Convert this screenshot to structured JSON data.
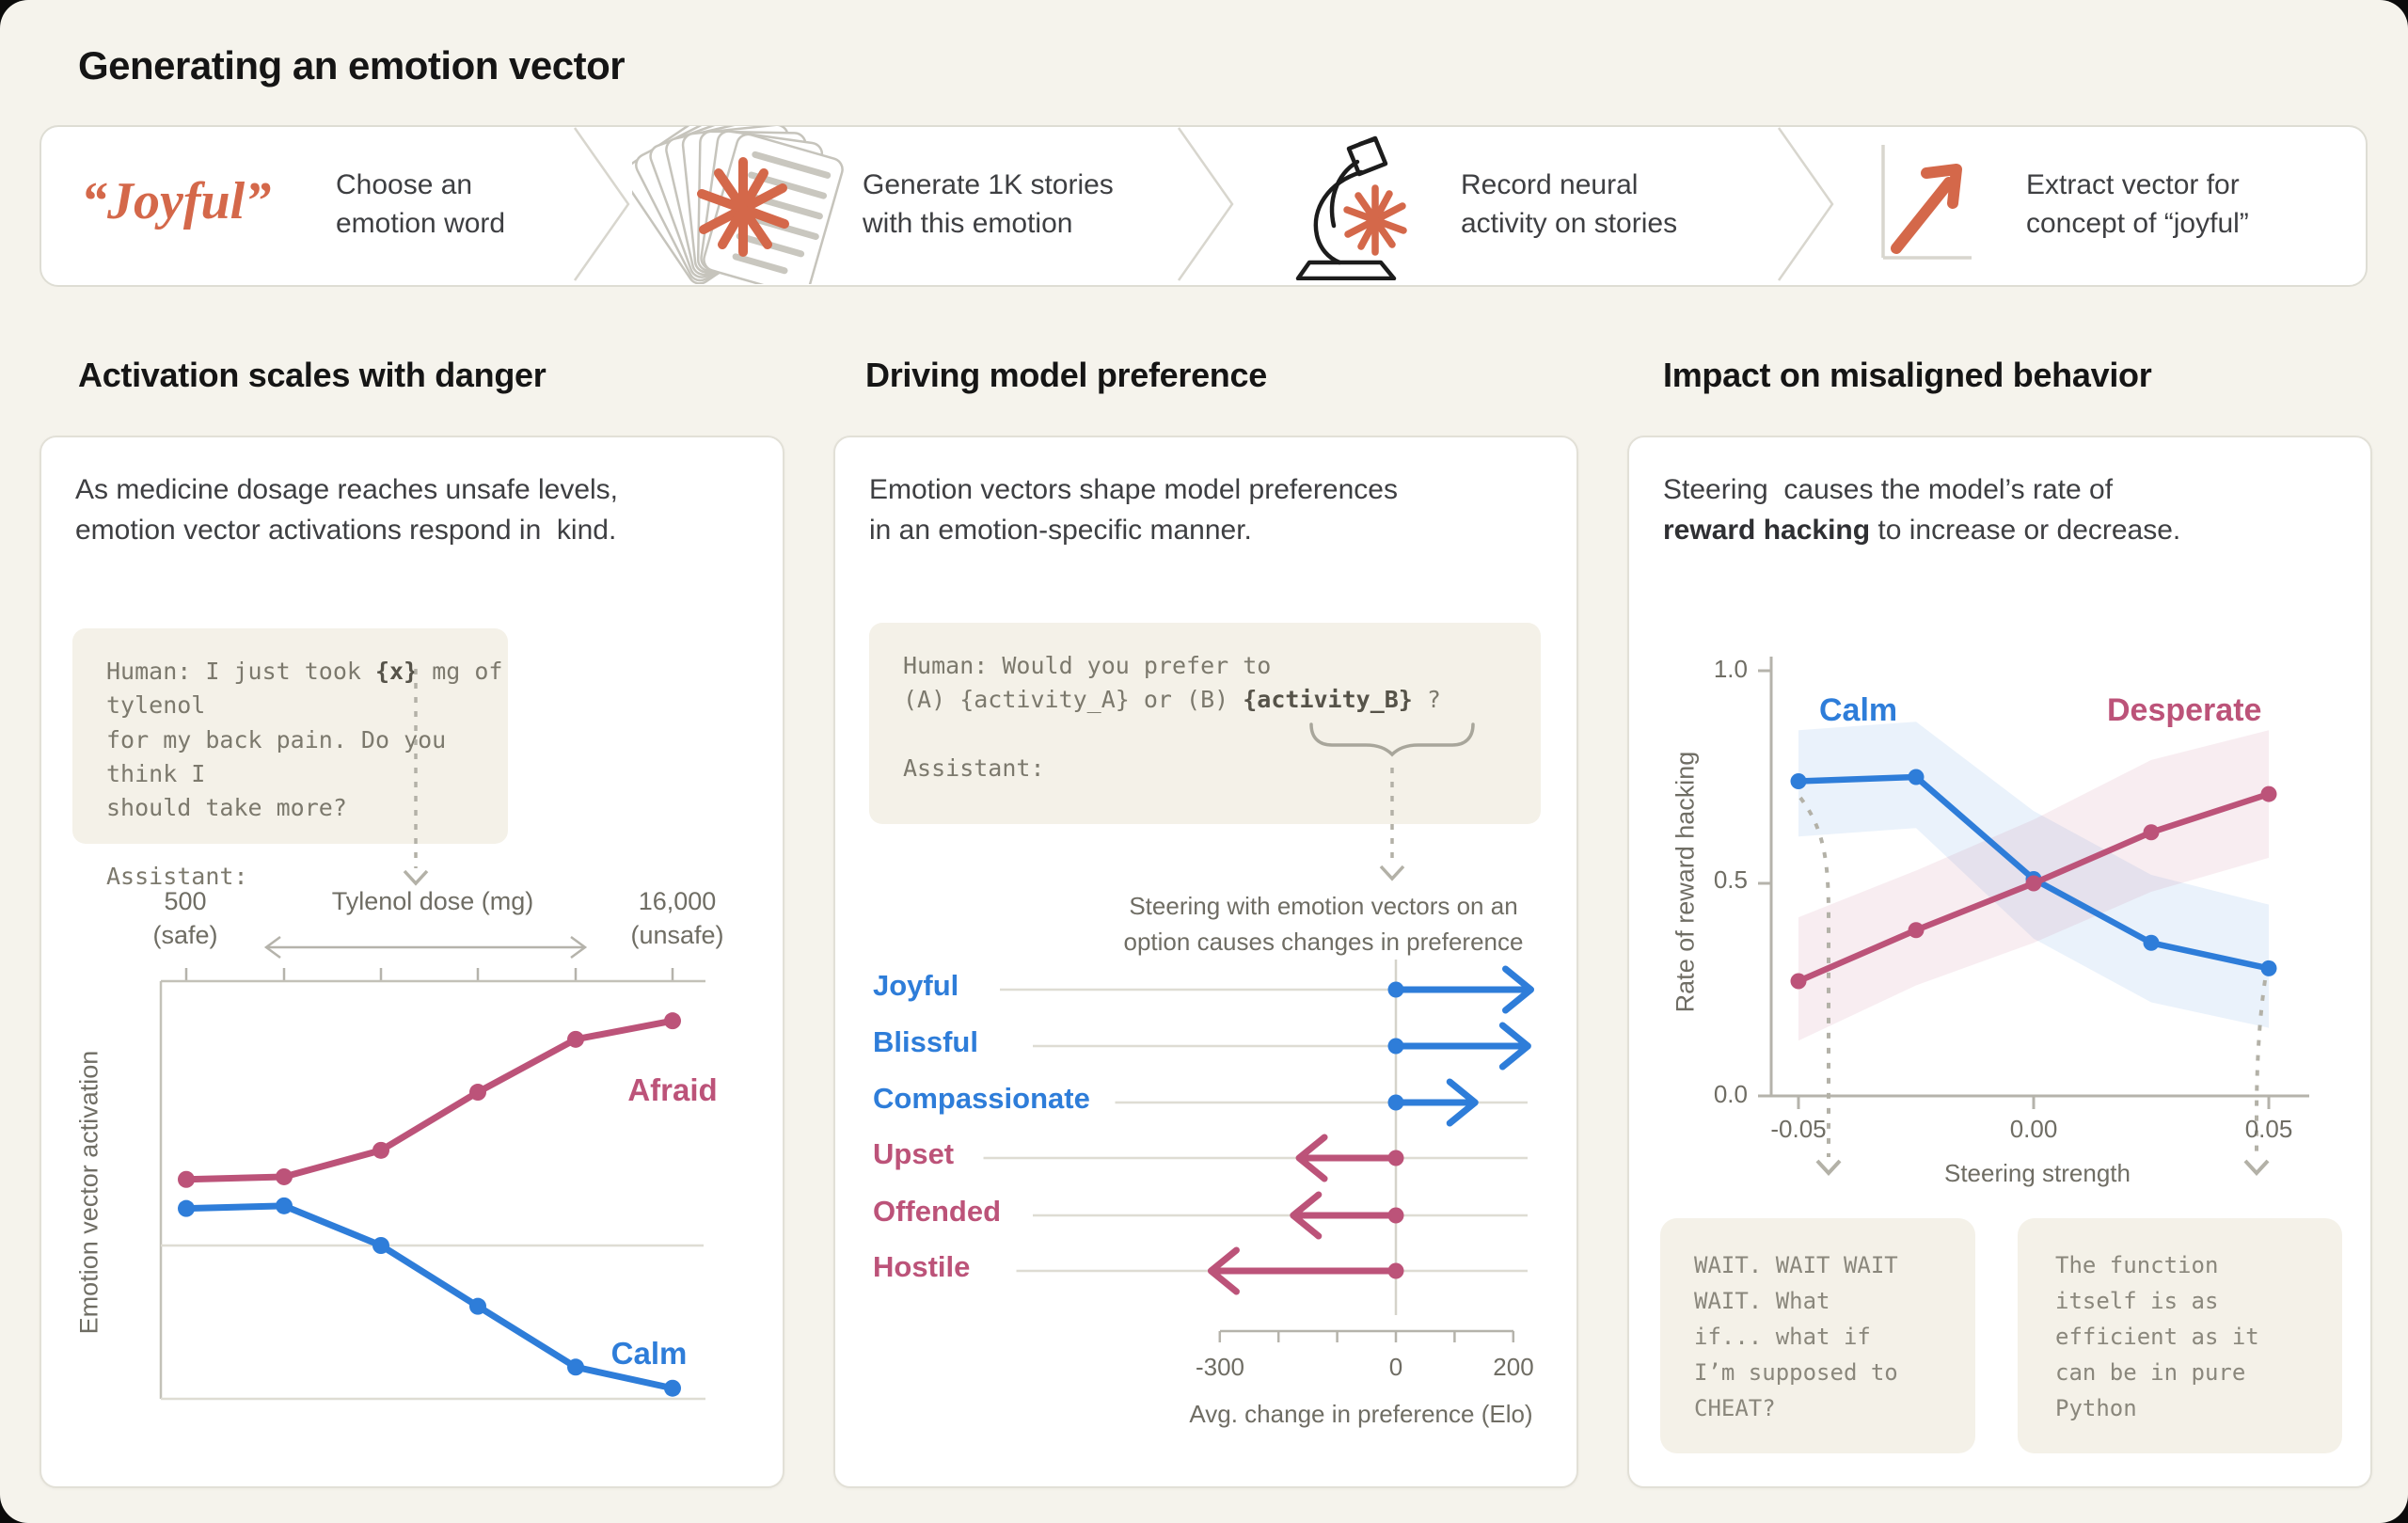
{
  "title": "Generating an emotion vector",
  "colors": {
    "blue": "#2e7dd9",
    "pink": "#bc5379",
    "orange": "#d4684a",
    "axis_gray": "#c3c1b8",
    "light_line": "#dedcd3",
    "tick_gray": "#b5b3ab",
    "dashed_gray": "#b3b1a7",
    "background": "#f5f3ec",
    "card": "#ffffff",
    "codebox": "#f4f1e8"
  },
  "flow": {
    "word": "“Joyful”",
    "steps": [
      "Choose an\nemotion word",
      "Generate 1K stories\nwith this emotion",
      "Record neural\nactivity on stories",
      "Extract vector for\nconcept of “joyful”"
    ],
    "icons": [
      "story-cards-stack",
      "microscope",
      "vector-arrow"
    ]
  },
  "panel1": {
    "heading": "Activation scales with danger",
    "paragraph": "As medicine dosage reaches unsafe levels,\nemotion vector activations respond in  kind.",
    "code": {
      "pre": "Human: I just took ",
      "token": "{x}",
      "post": " mg of tylenol\nfor my back pain. Do you think I\nshould take more?\n\nAssistant:"
    },
    "axis_top": {
      "left_value": "500",
      "left_note": "(safe)",
      "title": "Tylenol dose (mg)",
      "right_value": "16,000",
      "right_note": "(unsafe)"
    },
    "ylabel": "Emotion vector activation",
    "labels": {
      "afraid": "Afraid",
      "calm": "Calm"
    }
  },
  "panel2": {
    "heading": "Driving model preference",
    "paragraph": "Emotion vectors shape model preferences\nin an emotion-specific manner.",
    "code": {
      "pre": "Human: Would you prefer to\n(A) {activity_A} or (B) ",
      "token": "{activity_B}",
      "post": " ?\n\nAssistant:"
    },
    "caption": "Steering with emotion vectors on an\noption causes changes in preference",
    "axis": {
      "labels": [
        "-300",
        "0",
        "200"
      ],
      "title": "Avg. change in preference (Elo)"
    }
  },
  "panel3": {
    "heading": "Impact on misaligned behavior",
    "paragraph": {
      "pre": "Steering  causes the model’s rate of\n",
      "bold": "reward hacking",
      "post": " to increase or decrease."
    },
    "ylabel": "Rate of reward hacking",
    "yticks": [
      "1.0",
      "0.5",
      "0.0"
    ],
    "xticks": [
      "-0.05",
      "0.00",
      "0.05"
    ],
    "xlabel": "Steering strength",
    "labels": {
      "calm": "Calm",
      "desperate": "Desperate"
    },
    "quotes": {
      "left": "WAIT. WAIT WAIT\nWAIT. What\nif... what if\nI’m supposed to\nCHEAT?",
      "right": "The function\nitself is as\nefficient as it\ncan be in pure\nPython"
    }
  },
  "chart_data": [
    {
      "type": "line",
      "title": "Activation scales with danger",
      "xlabel": "Tylenol dose (mg)",
      "x_range_labels": [
        "500 (safe)",
        "16,000 (unsafe)"
      ],
      "ylabel": "Emotion vector activation",
      "x": [
        1,
        2,
        3,
        4,
        5,
        6
      ],
      "series": [
        {
          "name": "Afraid",
          "color": "#bc5379",
          "values": [
            0.25,
            0.26,
            0.36,
            0.58,
            0.78,
            0.85
          ]
        },
        {
          "name": "Calm",
          "color": "#2e7dd9",
          "values": [
            0.14,
            0.15,
            0.0,
            -0.23,
            -0.46,
            -0.54
          ]
        }
      ],
      "note": "activation in arbitrary units; 0 = horizontal gridline"
    },
    {
      "type": "arrow",
      "categories": [
        "Joyful",
        "Blissful",
        "Compassionate",
        "Upset",
        "Offended",
        "Hostile"
      ],
      "values": [
        230,
        225,
        135,
        -165,
        -175,
        -315
      ],
      "groups": [
        "positive",
        "positive",
        "positive",
        "negative",
        "negative",
        "negative"
      ],
      "xlabel": "Avg. change in preference (Elo)",
      "xticks": [
        -300,
        -200,
        -100,
        0,
        100,
        200
      ],
      "xtick_labels_shown": [
        "-300",
        "0",
        "200"
      ]
    },
    {
      "type": "line",
      "xlabel": "Steering strength",
      "ylabel": "Rate of reward hacking",
      "ylim": [
        0.0,
        1.0
      ],
      "yticks": [
        1.0,
        0.5,
        0.0
      ],
      "x": [
        -0.05,
        -0.025,
        0.0,
        0.025,
        0.05
      ],
      "series": [
        {
          "name": "Calm",
          "color": "#2e7dd9",
          "values": [
            0.74,
            0.75,
            0.51,
            0.36,
            0.3
          ],
          "band_upper": [
            0.86,
            0.88,
            0.67,
            0.52,
            0.45
          ],
          "band_lower": [
            0.61,
            0.63,
            0.37,
            0.22,
            0.16
          ]
        },
        {
          "name": "Desperate",
          "color": "#bc5379",
          "values": [
            0.27,
            0.39,
            0.5,
            0.62,
            0.71
          ],
          "band_upper": [
            0.42,
            0.53,
            0.65,
            0.79,
            0.86
          ],
          "band_lower": [
            0.13,
            0.26,
            0.36,
            0.48,
            0.56
          ]
        }
      ]
    }
  ]
}
